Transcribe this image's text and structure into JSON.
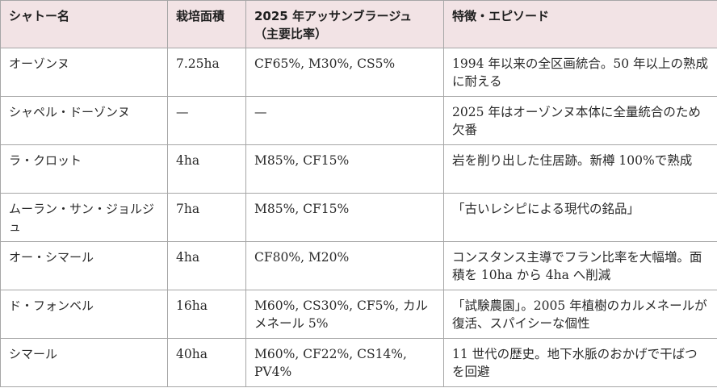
{
  "table": {
    "headers": [
      "シャトー名",
      "栽培面積",
      "2025 年アッサンブラージュ（主要比率）",
      "特徴・エピソード"
    ],
    "rows": [
      [
        "オーゾンヌ",
        "7.25ha",
        "CF65%, M30%, CS5%",
        "1994 年以来の全区画統合。50 年以上の熟成に耐える"
      ],
      [
        "シャペル・ドーゾンヌ",
        "—",
        "—",
        "2025 年はオーゾンヌ本体に全量統合のため欠番"
      ],
      [
        "ラ・クロット",
        "4ha",
        "M85%, CF15%",
        "岩を削り出した住居跡。新樽 100%で熟成"
      ],
      [
        "ムーラン・サン・ジョルジュ",
        "7ha",
        "M85%, CF15%",
        "「古いレシピによる現代の銘品」"
      ],
      [
        "オー・シマール",
        "4ha",
        "CF80%, M20%",
        "コンスタンス主導でフラン比率を大幅増。面積を 10ha から 4ha へ削減"
      ],
      [
        "ド・フォンベル",
        "16ha",
        "M60%, CS30%, CF5%, カルメネール 5%",
        "「試験農園」。2005 年植樹のカルメネールが復活、スパイシーな個性"
      ],
      [
        "シマール",
        "40ha",
        "M60%, CF22%, CS14%, PV4%",
        "11 世代の歴史。地下水脈のおかげで干ばつを回避"
      ]
    ]
  }
}
